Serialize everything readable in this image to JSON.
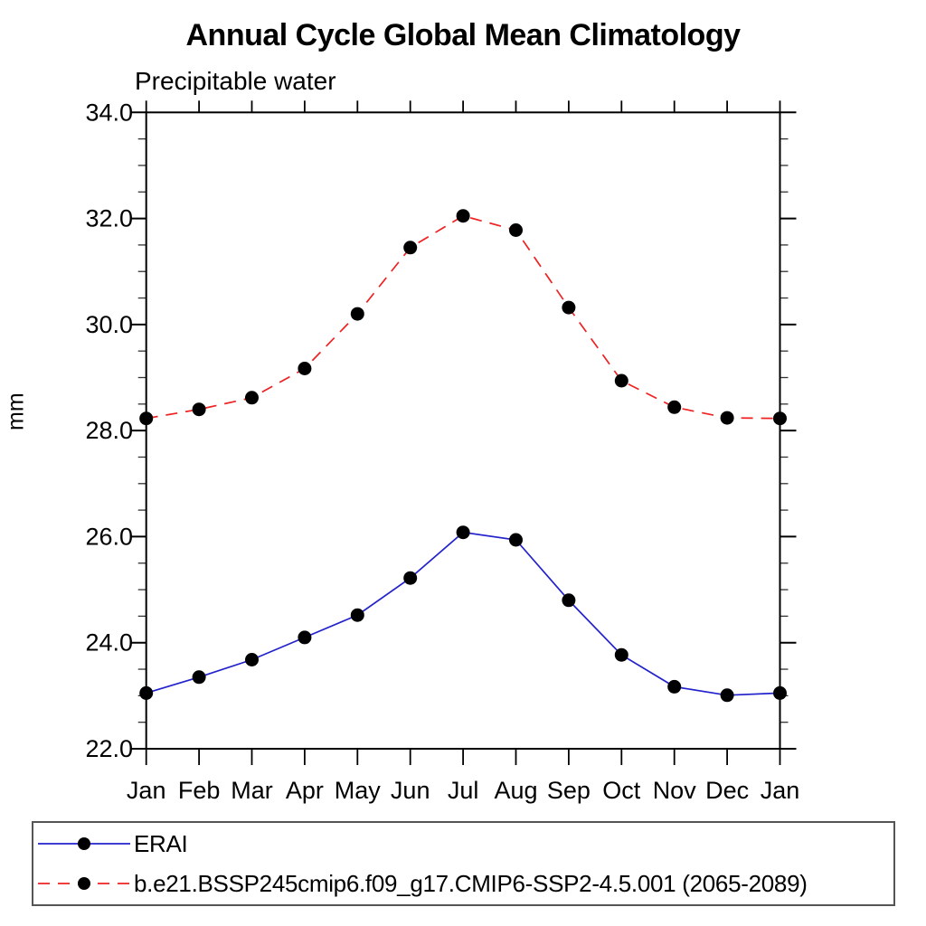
{
  "title": "Annual Cycle Global Mean Climatology",
  "subtitle": "Precipitable water",
  "y_axis_title": "mm",
  "chart_data": {
    "type": "line",
    "categories": [
      "Jan",
      "Feb",
      "Mar",
      "Apr",
      "May",
      "Jun",
      "Jul",
      "Aug",
      "Sep",
      "Oct",
      "Nov",
      "Dec",
      "Jan"
    ],
    "xlabel": "",
    "ylabel": "mm",
    "ylim": [
      22.0,
      34.0
    ],
    "ytick_interval": 2.0,
    "yminor_interval": 0.5,
    "ytick_labels": [
      "22.0",
      "24.0",
      "26.0",
      "28.0",
      "30.0",
      "32.0",
      "34.0"
    ],
    "grid": false,
    "legend_position": "bottom-left-box",
    "series": [
      {
        "name": "ERAI",
        "color": "#2222cc",
        "line_style": "solid",
        "marker": "circle",
        "marker_color": "#000000",
        "values": [
          23.05,
          23.35,
          23.68,
          24.1,
          24.52,
          25.22,
          26.08,
          25.94,
          24.8,
          23.77,
          23.17,
          23.01,
          23.05
        ]
      },
      {
        "name": "b.e21.BSSP245cmip6.f09_g17.CMIP6-SSP2-4.5.001 (2065-2089)",
        "color": "#ee2222",
        "line_style": "dashed",
        "marker": "circle",
        "marker_color": "#000000",
        "values": [
          28.23,
          28.4,
          28.62,
          29.17,
          30.2,
          31.45,
          32.05,
          31.78,
          30.32,
          28.94,
          28.44,
          28.24,
          28.23
        ]
      }
    ]
  }
}
